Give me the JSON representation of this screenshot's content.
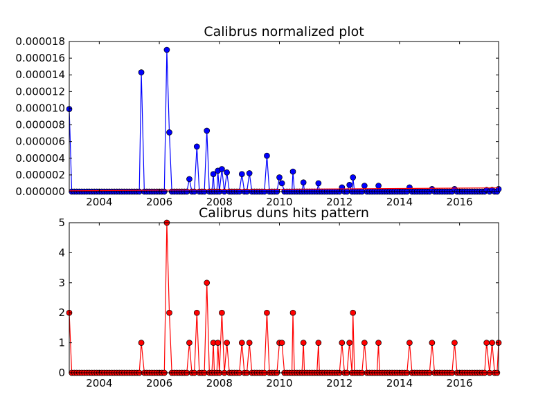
{
  "chart_data": [
    {
      "type": "line",
      "title": "Calibrus normalized plot",
      "xlabel": "",
      "ylabel": "",
      "xlim": [
        2003.0,
        2017.3
      ],
      "ylim": [
        0,
        1.8e-05
      ],
      "x_ticks": [
        2004,
        2006,
        2008,
        2010,
        2012,
        2014,
        2016
      ],
      "x_tick_labels": [
        "2004",
        "2006",
        "2008",
        "2010",
        "2012",
        "2014",
        "2016"
      ],
      "y_ticks": [
        0,
        2e-06,
        4e-06,
        6e-06,
        8e-06,
        1e-05,
        1.2e-05,
        1.4e-05,
        1.6e-05,
        1.8e-05
      ],
      "y_tick_labels": [
        "0.000000",
        "0.000002",
        "0.000004",
        "0.000006",
        "0.000008",
        "0.000010",
        "0.000012",
        "0.000014",
        "0.000016",
        "0.000018"
      ],
      "grid": false,
      "series": [
        {
          "color": "#0000ff",
          "marker": "circle",
          "peaks": [
            [
              2003.0,
              9.9e-06
            ],
            [
              2005.4,
              1.43e-05
            ],
            [
              2006.25,
              1.7e-05
            ],
            [
              2006.35,
              7.1e-06
            ],
            [
              2007.0,
              1.5e-06
            ],
            [
              2007.25,
              5.4e-06
            ],
            [
              2007.6,
              7.3e-06
            ],
            [
              2007.8,
              2.1e-06
            ],
            [
              2007.95,
              2.5e-06
            ],
            [
              2008.1,
              2.7e-06
            ],
            [
              2008.25,
              2.3e-06
            ],
            [
              2008.75,
              2.1e-06
            ],
            [
              2009.0,
              2.2e-06
            ],
            [
              2009.6,
              4.3e-06
            ],
            [
              2010.0,
              1.7e-06
            ],
            [
              2010.1,
              1e-06
            ],
            [
              2010.45,
              2.4e-06
            ],
            [
              2010.8,
              1.1e-06
            ],
            [
              2011.3,
              1e-06
            ],
            [
              2012.1,
              5e-07
            ],
            [
              2012.35,
              8e-07
            ],
            [
              2012.45,
              1.7e-06
            ],
            [
              2012.85,
              7e-07
            ],
            [
              2013.3,
              7e-07
            ],
            [
              2014.35,
              5e-07
            ],
            [
              2015.1,
              3e-07
            ],
            [
              2015.85,
              3e-07
            ],
            [
              2016.9,
              2e-07
            ],
            [
              2017.1,
              2e-07
            ],
            [
              2017.3,
              3e-07
            ]
          ]
        },
        {
          "color": "#ff0000",
          "marker": "none",
          "line": [
            [
              2003.0,
              1e-07
            ],
            [
              2017.3,
              4.5e-07
            ]
          ]
        }
      ]
    },
    {
      "type": "line",
      "title": "Calibrus duns hits pattern",
      "xlabel": "",
      "ylabel": "",
      "xlim": [
        2003.0,
        2017.3
      ],
      "ylim": [
        0,
        5
      ],
      "x_ticks": [
        2004,
        2006,
        2008,
        2010,
        2012,
        2014,
        2016
      ],
      "x_tick_labels": [
        "2004",
        "2006",
        "2008",
        "2010",
        "2012",
        "2014",
        "2016"
      ],
      "y_ticks": [
        0,
        1,
        2,
        3,
        4,
        5
      ],
      "y_tick_labels": [
        "0",
        "1",
        "2",
        "3",
        "4",
        "5"
      ],
      "grid": false,
      "series": [
        {
          "color": "#ff0000",
          "marker": "circle",
          "peaks": [
            [
              2003.0,
              2
            ],
            [
              2005.4,
              1
            ],
            [
              2006.25,
              5
            ],
            [
              2006.35,
              2
            ],
            [
              2007.0,
              1
            ],
            [
              2007.25,
              2
            ],
            [
              2007.6,
              3
            ],
            [
              2007.8,
              1
            ],
            [
              2007.95,
              1
            ],
            [
              2008.1,
              2
            ],
            [
              2008.25,
              1
            ],
            [
              2008.75,
              1
            ],
            [
              2009.0,
              1
            ],
            [
              2009.6,
              2
            ],
            [
              2010.0,
              1
            ],
            [
              2010.1,
              1
            ],
            [
              2010.45,
              2
            ],
            [
              2010.8,
              1
            ],
            [
              2011.3,
              1
            ],
            [
              2012.1,
              1
            ],
            [
              2012.35,
              1
            ],
            [
              2012.45,
              2
            ],
            [
              2012.85,
              1
            ],
            [
              2013.3,
              1
            ],
            [
              2014.35,
              1
            ],
            [
              2015.1,
              1
            ],
            [
              2015.85,
              1
            ],
            [
              2016.9,
              1
            ],
            [
              2017.1,
              1
            ],
            [
              2017.3,
              1
            ]
          ]
        }
      ]
    }
  ]
}
